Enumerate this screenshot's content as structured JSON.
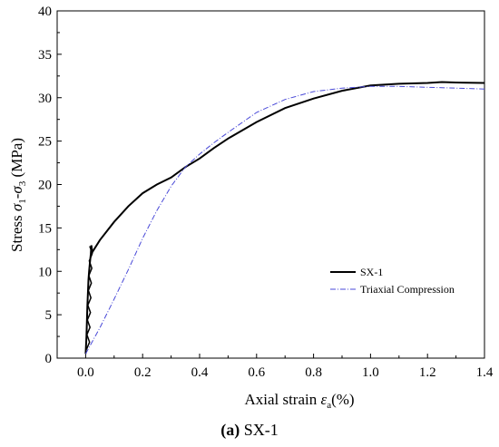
{
  "chart_data": {
    "type": "line",
    "title": "",
    "xlabel": "Axial strain ε_a(%)",
    "ylabel": "Stress σ1-σ3 (MPa)",
    "xlim": [
      -0.1,
      1.4
    ],
    "ylim": [
      0,
      40
    ],
    "x_ticks": [
      "0.0",
      "0.2",
      "0.4",
      "0.6",
      "0.8",
      "1.0",
      "1.2",
      "1.4"
    ],
    "y_ticks": [
      "0",
      "5",
      "10",
      "15",
      "20",
      "25",
      "30",
      "35",
      "40"
    ],
    "grid": false,
    "legend_position": "center-right",
    "series": [
      {
        "name": "SX-1",
        "color": "#000000",
        "style": "solid",
        "x": [
          0.0,
          0.003,
          0.006,
          0.01,
          0.012,
          0.015,
          0.018,
          0.02,
          0.022,
          0.025,
          0.05,
          0.1,
          0.15,
          0.2,
          0.25,
          0.3,
          0.35,
          0.4,
          0.45,
          0.5,
          0.6,
          0.7,
          0.8,
          0.9,
          1.0,
          1.1,
          1.2,
          1.25,
          1.3,
          1.4
        ],
        "y": [
          0.5,
          2.5,
          6.0,
          9.0,
          10.0,
          11.0,
          12.0,
          13.0,
          12.5,
          12.3,
          13.6,
          15.7,
          17.5,
          19.0,
          20.0,
          20.8,
          22.0,
          23.0,
          24.2,
          25.3,
          27.2,
          28.8,
          29.9,
          30.8,
          31.4,
          31.6,
          31.7,
          31.8,
          31.75,
          31.7
        ]
      },
      {
        "name": "Triaxial Compression",
        "color": "#4a4ad8",
        "style": "dash-dot",
        "x": [
          0.0,
          0.05,
          0.1,
          0.15,
          0.2,
          0.25,
          0.3,
          0.35,
          0.4,
          0.45,
          0.5,
          0.6,
          0.7,
          0.8,
          0.9,
          1.0,
          1.1,
          1.2,
          1.3,
          1.4
        ],
        "y": [
          0.5,
          3.5,
          6.8,
          10.2,
          13.8,
          17.0,
          19.8,
          22.0,
          23.5,
          24.8,
          26.0,
          28.3,
          29.8,
          30.7,
          31.1,
          31.3,
          31.3,
          31.2,
          31.1,
          31.0
        ]
      }
    ]
  },
  "caption": {
    "label": "(a)",
    "text": " SX-1"
  }
}
